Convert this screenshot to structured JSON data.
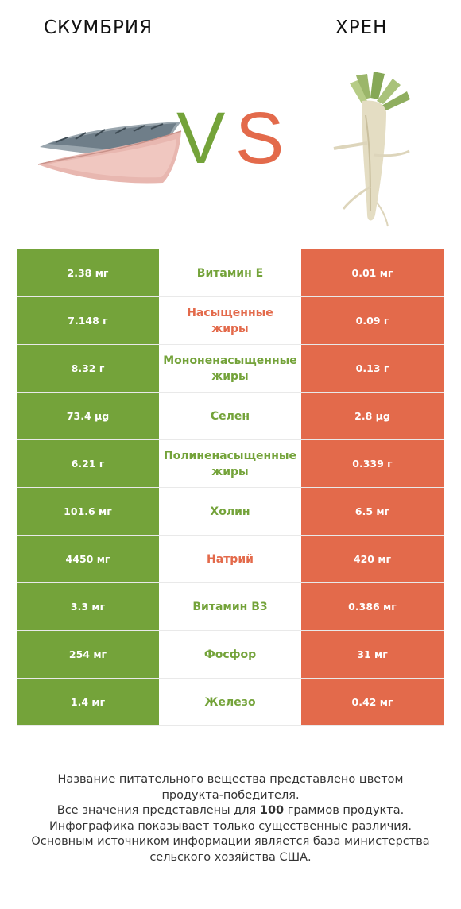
{
  "header": {
    "left_title": "СКУМБРИЯ",
    "right_title": "ХРЕН",
    "vs_v": "V",
    "vs_s": "S"
  },
  "colors": {
    "left_winner": "#74a33a",
    "right_winner": "#e36a4b"
  },
  "rows": [
    {
      "left": "2.38 мг",
      "name": "Витамин E",
      "right": "0.01 мг",
      "winner": "left"
    },
    {
      "left": "7.148 г",
      "name": "Насыщенные\nжиры",
      "right": "0.09 г",
      "winner": "right"
    },
    {
      "left": "8.32 г",
      "name": "Мононенасыщенные\nжиры",
      "right": "0.13 г",
      "winner": "left"
    },
    {
      "left": "73.4 µg",
      "name": "Селен",
      "right": "2.8 µg",
      "winner": "left"
    },
    {
      "left": "6.21 г",
      "name": "Полиненасыщенные\nжиры",
      "right": "0.339 г",
      "winner": "left"
    },
    {
      "left": "101.6 мг",
      "name": "Холин",
      "right": "6.5 мг",
      "winner": "left"
    },
    {
      "left": "4450 мг",
      "name": "Натрий",
      "right": "420 мг",
      "winner": "right"
    },
    {
      "left": "3.3 мг",
      "name": "Витамин B3",
      "right": "0.386 мг",
      "winner": "left"
    },
    {
      "left": "254 мг",
      "name": "Фосфор",
      "right": "31 мг",
      "winner": "left"
    },
    {
      "left": "1.4 мг",
      "name": "Железо",
      "right": "0.42 мг",
      "winner": "left"
    }
  ],
  "footer": {
    "line1": "Название питательного вещества представлено цветом",
    "line2": "продукта-победителя.",
    "line3_prefix": "Все значения представлены для ",
    "line3_bold": "100",
    "line3_suffix": " граммов продукта.",
    "line4": "Инфографика показывает только существенные различия.",
    "line5": "Основным источником информации является база министерства",
    "line6": "сельского хозяйства США."
  }
}
